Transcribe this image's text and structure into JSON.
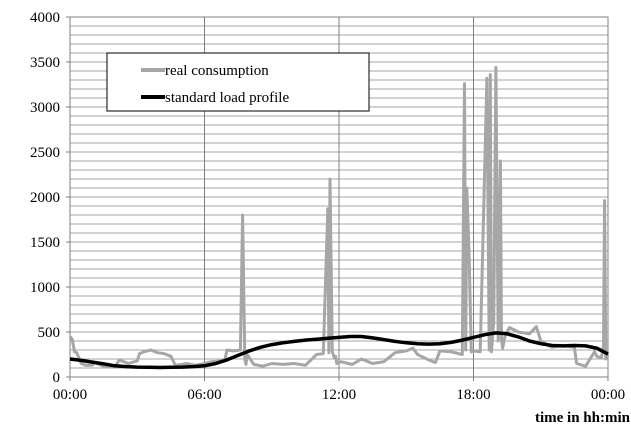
{
  "chart_data": {
    "type": "line",
    "title": "",
    "xlabel": "time in hh:min",
    "ylabel": "",
    "ylim": [
      0,
      4000
    ],
    "yticks": [
      0,
      500,
      1000,
      1500,
      2000,
      2500,
      3000,
      3500,
      4000
    ],
    "xlim": [
      "00:00",
      "24:00"
    ],
    "xticks": [
      "00:00",
      "06:00",
      "12:00",
      "18:00",
      "00:00"
    ],
    "grid": {
      "horizontal": true,
      "vertical": true,
      "horizontal_step": 100,
      "vertical_step_hours": 6
    },
    "legend": {
      "placement": "top-left"
    },
    "series": [
      {
        "name": "real consumption",
        "color": "#a6a6a6",
        "x_hours": [
          0.0,
          0.1,
          0.2,
          0.3,
          0.5,
          0.6,
          0.7,
          1.0,
          1.1,
          1.5,
          2.0,
          2.2,
          2.6,
          3.0,
          3.1,
          3.3,
          3.6,
          3.9,
          4.2,
          4.5,
          4.7,
          5.0,
          5.2,
          5.6,
          6.0,
          6.3,
          6.9,
          7.0,
          7.3,
          7.6,
          7.7,
          7.8,
          7.85,
          7.9,
          8.2,
          8.6,
          9.0,
          9.5,
          10.0,
          10.5,
          11.0,
          11.3,
          11.5,
          11.55,
          11.6,
          11.7,
          11.8,
          11.85,
          11.9,
          12.0,
          12.1,
          12.4,
          12.6,
          13.0,
          13.5,
          14.0,
          14.5,
          15.0,
          15.3,
          15.5,
          16.0,
          16.3,
          16.5,
          17.0,
          17.5,
          17.6,
          17.65,
          17.7,
          17.8,
          17.9,
          18.0,
          18.3,
          18.6,
          18.7,
          18.75,
          18.8,
          18.9,
          19.0,
          19.1,
          19.2,
          19.25,
          19.3,
          19.4,
          19.5,
          19.6,
          20.0,
          20.5,
          20.8,
          21.0,
          21.5,
          22.0,
          22.5,
          22.6,
          23.0,
          23.4,
          23.5,
          23.7,
          23.8,
          23.85,
          23.9,
          24.0
        ],
        "y": [
          450,
          420,
          280,
          270,
          150,
          140,
          130,
          130,
          160,
          120,
          110,
          190,
          150,
          180,
          260,
          280,
          300,
          270,
          260,
          230,
          130,
          140,
          150,
          130,
          150,
          170,
          180,
          300,
          290,
          300,
          1800,
          200,
          140,
          250,
          140,
          120,
          150,
          140,
          150,
          130,
          250,
          260,
          1870,
          270,
          2200,
          280,
          210,
          230,
          150,
          160,
          170,
          150,
          140,
          200,
          150,
          170,
          270,
          290,
          320,
          250,
          190,
          160,
          290,
          280,
          250,
          3260,
          300,
          2100,
          1400,
          280,
          290,
          280,
          3320,
          300,
          3360,
          280,
          600,
          3440,
          400,
          2400,
          420,
          320,
          450,
          500,
          550,
          500,
          480,
          560,
          400,
          330,
          350,
          330,
          150,
          120,
          280,
          230,
          210,
          350,
          1960,
          200,
          250
        ]
      },
      {
        "name": "standard load profile",
        "color": "#000000",
        "x_hours": [
          0,
          0.5,
          1,
          1.5,
          2,
          2.5,
          3,
          3.5,
          4,
          4.5,
          5,
          5.5,
          6,
          6.5,
          7,
          7.5,
          8,
          8.5,
          9,
          9.5,
          10,
          10.5,
          11,
          11.5,
          12,
          12.5,
          13,
          13.5,
          14,
          14.5,
          15,
          15.5,
          16,
          16.5,
          17,
          17.5,
          18,
          18.5,
          19,
          19.5,
          20,
          20.5,
          21,
          21.5,
          22,
          22.5,
          23,
          23.5,
          24
        ],
        "y": [
          200,
          185,
          165,
          145,
          125,
          115,
          110,
          108,
          106,
          108,
          110,
          115,
          125,
          150,
          190,
          240,
          290,
          330,
          360,
          380,
          395,
          410,
          420,
          430,
          440,
          450,
          450,
          435,
          415,
          395,
          380,
          370,
          365,
          370,
          385,
          410,
          440,
          470,
          490,
          480,
          445,
          400,
          370,
          350,
          345,
          350,
          345,
          320,
          255
        ]
      }
    ]
  }
}
